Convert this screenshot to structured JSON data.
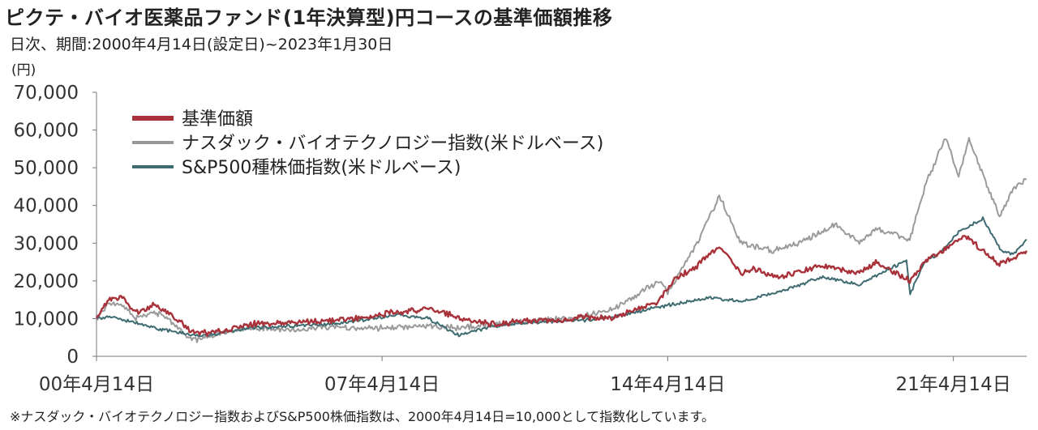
{
  "title": "ピクテ・バイオ医薬品ファンド(1年決算型)円コースの基準価額推移",
  "subtitle": "日次、期間:2000年4月14日(設定日)~2023年1月30日",
  "unit_label": "(円)",
  "footnote": "※ナスダック・バイオテクノロジー指数およびS&P500株価指数は、2000年4月14日=10,000として指数化しています。",
  "colors": {
    "fund": "#a8313a",
    "nasdaq_bio": "#9a9a9a",
    "sp500": "#3e6b70",
    "axis": "#777777"
  },
  "chart_data": {
    "type": "line",
    "ylim": [
      0,
      70000
    ],
    "yticks": [
      "0",
      "10,000",
      "20,000",
      "30,000",
      "40,000",
      "50,000",
      "60,000",
      "70,000"
    ],
    "ytick_values": [
      0,
      10000,
      20000,
      30000,
      40000,
      50000,
      60000,
      70000
    ],
    "xlim": [
      "2000-04-14",
      "2023-01-30"
    ],
    "xticks": [
      "00年4月14日",
      "07年4月14日",
      "14年4月14日",
      "21年4月14日"
    ],
    "xtick_dates": [
      "2000-04-14",
      "2007-04-14",
      "2014-04-14",
      "2021-04-14"
    ],
    "legend": "top-left",
    "series": [
      {
        "name": "基準価額",
        "color_key": "fund",
        "points": [
          [
            "2000-04-14",
            10000
          ],
          [
            "2000-08-01",
            15000
          ],
          [
            "2000-12-01",
            15500
          ],
          [
            "2001-04-01",
            11500
          ],
          [
            "2001-09-01",
            13500
          ],
          [
            "2002-01-01",
            12000
          ],
          [
            "2002-07-01",
            7500
          ],
          [
            "2002-10-01",
            6000
          ],
          [
            "2003-04-01",
            6500
          ],
          [
            "2004-01-01",
            8500
          ],
          [
            "2005-01-01",
            9000
          ],
          [
            "2006-01-01",
            9500
          ],
          [
            "2007-01-01",
            10500
          ],
          [
            "2007-07-01",
            11500
          ],
          [
            "2008-06-01",
            12500
          ],
          [
            "2009-01-01",
            11000
          ],
          [
            "2009-06-01",
            9500
          ],
          [
            "2010-01-01",
            8500
          ],
          [
            "2011-01-01",
            9500
          ],
          [
            "2011-10-01",
            9500
          ],
          [
            "2012-04-01",
            10500
          ],
          [
            "2012-10-01",
            10000
          ],
          [
            "2013-01-01",
            10500
          ],
          [
            "2013-06-01",
            12000
          ],
          [
            "2014-01-01",
            14000
          ],
          [
            "2014-06-01",
            20000
          ],
          [
            "2015-01-01",
            24000
          ],
          [
            "2015-07-20",
            29500
          ],
          [
            "2016-02-01",
            22000
          ],
          [
            "2016-06-01",
            23000
          ],
          [
            "2017-01-01",
            21000
          ],
          [
            "2018-01-01",
            24000
          ],
          [
            "2018-12-25",
            22000
          ],
          [
            "2019-06-01",
            25000
          ],
          [
            "2020-03-20",
            20000
          ],
          [
            "2020-08-01",
            25000
          ],
          [
            "2021-01-01",
            28000
          ],
          [
            "2021-08-01",
            32000
          ],
          [
            "2022-01-01",
            28000
          ],
          [
            "2022-06-01",
            24500
          ],
          [
            "2022-10-01",
            26000
          ],
          [
            "2023-01-30",
            28000
          ]
        ]
      },
      {
        "name": "ナスダック・バイオテクノロジー指数(米ドルベース)",
        "color_key": "nasdaq_bio",
        "points": [
          [
            "2000-04-14",
            10000
          ],
          [
            "2000-08-01",
            14000
          ],
          [
            "2000-12-01",
            13500
          ],
          [
            "2001-04-01",
            10000
          ],
          [
            "2001-09-01",
            12000
          ],
          [
            "2002-01-01",
            10500
          ],
          [
            "2002-07-01",
            5500
          ],
          [
            "2002-10-01",
            4500
          ],
          [
            "2003-04-01",
            6000
          ],
          [
            "2004-01-01",
            7500
          ],
          [
            "2005-01-01",
            7000
          ],
          [
            "2006-01-01",
            8000
          ],
          [
            "2007-01-01",
            7500
          ],
          [
            "2008-06-01",
            8000
          ],
          [
            "2009-03-01",
            7500
          ],
          [
            "2010-01-01",
            8500
          ],
          [
            "2011-01-01",
            9500
          ],
          [
            "2012-01-01",
            10000
          ],
          [
            "2013-01-01",
            13000
          ],
          [
            "2014-02-01",
            20000
          ],
          [
            "2014-04-14",
            17000
          ],
          [
            "2015-01-01",
            30000
          ],
          [
            "2015-07-20",
            42500
          ],
          [
            "2016-02-01",
            30000
          ],
          [
            "2016-11-01",
            28000
          ],
          [
            "2017-07-01",
            30000
          ],
          [
            "2018-06-01",
            35000
          ],
          [
            "2018-12-25",
            30000
          ],
          [
            "2019-06-01",
            34000
          ],
          [
            "2020-03-20",
            31000
          ],
          [
            "2020-08-01",
            45000
          ],
          [
            "2021-02-01",
            58000
          ],
          [
            "2021-06-01",
            48000
          ],
          [
            "2021-09-01",
            57500
          ],
          [
            "2022-06-01",
            37000
          ],
          [
            "2022-10-01",
            44000
          ],
          [
            "2023-01-30",
            47000
          ]
        ]
      },
      {
        "name": "S&P500種株価指数(米ドルベース)",
        "color_key": "sp500",
        "points": [
          [
            "2000-04-14",
            10000
          ],
          [
            "2000-09-01",
            10500
          ],
          [
            "2001-09-20",
            7500
          ],
          [
            "2002-10-01",
            5500
          ],
          [
            "2003-03-01",
            5800
          ],
          [
            "2004-01-01",
            7500
          ],
          [
            "2005-01-01",
            8000
          ],
          [
            "2006-01-01",
            8500
          ],
          [
            "2007-10-01",
            11000
          ],
          [
            "2008-06-01",
            10000
          ],
          [
            "2009-03-01",
            5500
          ],
          [
            "2010-01-01",
            8000
          ],
          [
            "2011-01-01",
            9000
          ],
          [
            "2012-01-01",
            9300
          ],
          [
            "2013-01-01",
            10500
          ],
          [
            "2014-01-01",
            13000
          ],
          [
            "2015-05-01",
            15500
          ],
          [
            "2016-02-01",
            14500
          ],
          [
            "2017-01-01",
            17000
          ],
          [
            "2018-01-20",
            21000
          ],
          [
            "2018-12-25",
            19000
          ],
          [
            "2019-07-01",
            22000
          ],
          [
            "2020-02-19",
            25500
          ],
          [
            "2020-03-23",
            16500
          ],
          [
            "2020-08-01",
            25000
          ],
          [
            "2021-01-01",
            28000
          ],
          [
            "2021-06-01",
            33000
          ],
          [
            "2022-01-03",
            36500
          ],
          [
            "2022-06-16",
            28000
          ],
          [
            "2022-10-01",
            27000
          ],
          [
            "2023-01-30",
            31000
          ]
        ]
      }
    ]
  }
}
